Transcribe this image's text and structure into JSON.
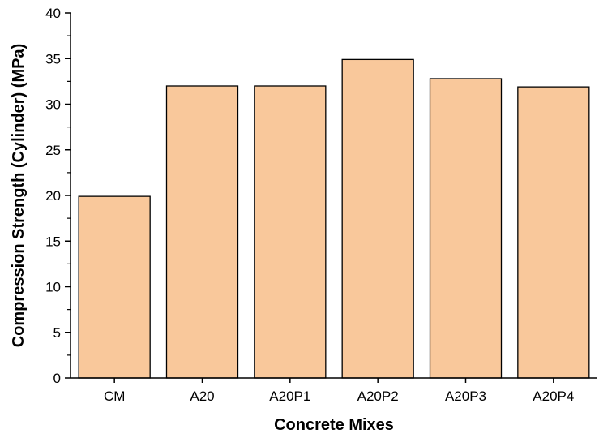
{
  "chart_data": {
    "type": "bar",
    "title": "",
    "xlabel": "Concrete Mixes",
    "ylabel": "Compression Strength (Cylinder) (MPa)",
    "categories": [
      "CM",
      "A20",
      "A20P1",
      "A20P2",
      "A20P3",
      "A20P4"
    ],
    "values": [
      19.9,
      32.0,
      32.0,
      34.9,
      32.8,
      31.9
    ],
    "ylim": [
      0,
      40
    ],
    "yticks": [
      "0",
      "5",
      "10",
      "15",
      "20",
      "25",
      "30",
      "35",
      "40"
    ],
    "grid": false,
    "legend": "none",
    "colors": {
      "bar_fill": "#F9C89B",
      "bar_stroke": "#000000",
      "axis": "#000000"
    }
  }
}
